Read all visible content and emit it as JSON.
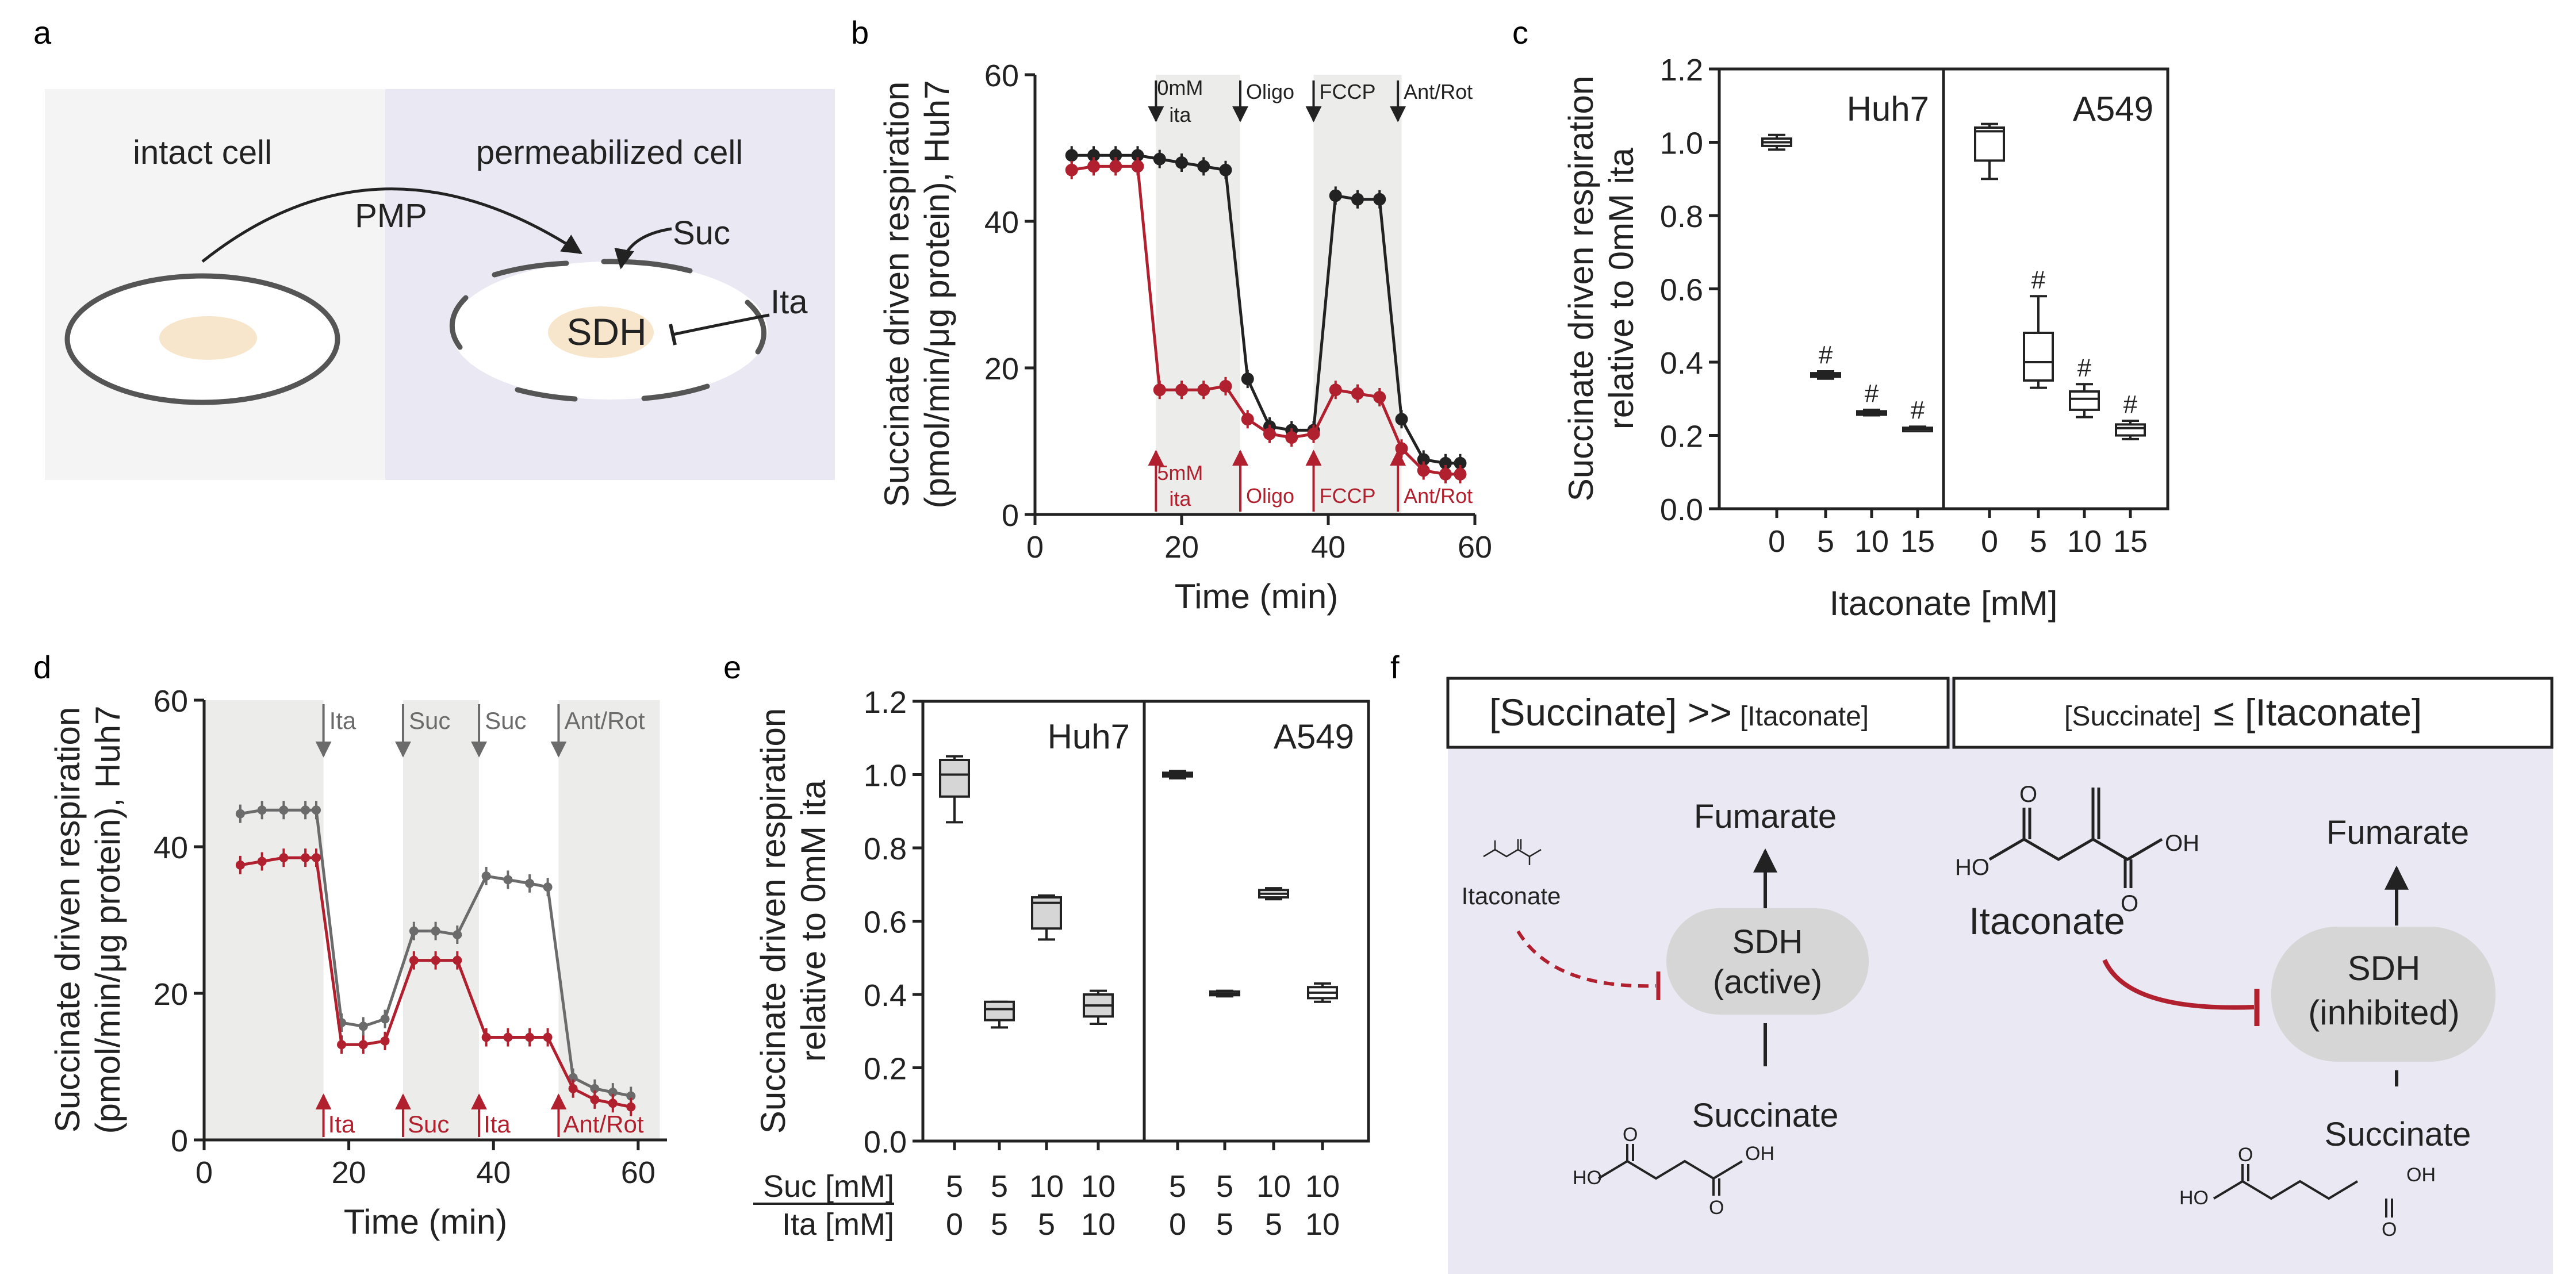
{
  "colors": {
    "black": "#222222",
    "red": "#b0202e",
    "gray": "#6b6b6b",
    "shade": "#ececea",
    "panel_a_left": "#f4f4f4",
    "panel_a_right": "#e9e8f3",
    "panel_f_bg": "#e9e8f3",
    "mito": "#f7e6cb",
    "sdh_box": "#d6d6d6"
  },
  "panel_labels": {
    "a": "a",
    "b": "b",
    "c": "c",
    "d": "d",
    "e": "e",
    "f": "f"
  },
  "panel_a": {
    "left_title": "intact cell",
    "right_title": "permeabilized cell",
    "pmp": "PMP",
    "suc": "Suc",
    "ita": "Ita",
    "sdh": "SDH"
  },
  "panel_b": {
    "ylabel_1": "Succinate driven respiration",
    "ylabel_2": "(pmol/min/μg protein), Huh7",
    "xlabel": "Time (min)",
    "yticks": [
      "0",
      "20",
      "40",
      "60"
    ],
    "xticks": [
      "0",
      "20",
      "40",
      "60"
    ],
    "top_annotations": [
      {
        "line1": "0mM",
        "line2": "ita"
      },
      {
        "line1": "Oligo",
        "line2": ""
      },
      {
        "line1": "FCCP",
        "line2": ""
      },
      {
        "line1": "Ant/Rot",
        "line2": ""
      }
    ],
    "bottom_annotations": [
      {
        "line1": "5mM",
        "line2": "ita"
      },
      {
        "line1": "Oligo",
        "line2": ""
      },
      {
        "line1": "FCCP",
        "line2": ""
      },
      {
        "line1": "Ant/Rot",
        "line2": ""
      }
    ]
  },
  "panel_c": {
    "ylabel_1": "Succinate driven respiration",
    "ylabel_2": "relative to 0mM ita",
    "xlabel": "Itaconate [mM]",
    "yticks": [
      "0.0",
      "0.2",
      "0.4",
      "0.6",
      "0.8",
      "1.0",
      "1.2"
    ],
    "xticks": [
      "0",
      "5",
      "10",
      "15"
    ],
    "cell_lines": [
      "Huh7",
      "A549"
    ],
    "sig": "#"
  },
  "panel_d": {
    "ylabel_1": "Succinate driven respiration",
    "ylabel_2": "(pmol/min/μg protein), Huh7",
    "xlabel": "Time (min)",
    "yticks": [
      "0",
      "20",
      "40",
      "60"
    ],
    "xticks": [
      "0",
      "20",
      "40",
      "60"
    ],
    "top_annotations": [
      "Ita",
      "Suc",
      "Suc",
      "Ant/Rot"
    ],
    "bottom_annotations": [
      "Ita",
      "Suc",
      "Ita",
      "Ant/Rot"
    ]
  },
  "panel_e": {
    "ylabel_1": "Succinate driven respiration",
    "ylabel_2": "relative to 0mM ita",
    "yticks": [
      "0.0",
      "0.2",
      "0.4",
      "0.6",
      "0.8",
      "1.0",
      "1.2"
    ],
    "cell_lines": [
      "Huh7",
      "A549"
    ],
    "row_labels": [
      "Suc [mM]",
      "Ita [mM]"
    ],
    "suc_values": [
      "5",
      "5",
      "10",
      "10"
    ],
    "ita_values": [
      "0",
      "5",
      "5",
      "10"
    ]
  },
  "panel_f": {
    "left_header_big": "[Succinate] >>",
    "left_header_small": "[Itaconate]",
    "right_header_small": "[Succinate]",
    "right_header_big": "≤ [Itaconate]",
    "fumarate": "Fumarate",
    "succinate": "Succinate",
    "itaconate": "Itaconate",
    "sdh": "SDH",
    "active": "(active)",
    "inhibited": "(inhibited)",
    "ho": "HO",
    "oh": "OH",
    "o": "O"
  },
  "chart_data": [
    {
      "panel": "b",
      "type": "line",
      "title": "",
      "xlabel": "Time (min)",
      "ylabel": "Succinate driven respiration (pmol/min/μg protein), Huh7",
      "xlim": [
        0,
        60
      ],
      "ylim": [
        0,
        60
      ],
      "series": [
        {
          "name": "0mM ita",
          "color": "#222222",
          "x": [
            5,
            8,
            11,
            14,
            17,
            20,
            23,
            26,
            29,
            32,
            35,
            38,
            41,
            44,
            47,
            50,
            53,
            56,
            58
          ],
          "y": [
            49,
            49,
            49,
            49,
            48.5,
            48,
            47.5,
            47,
            18.5,
            12,
            11.5,
            11.5,
            43.5,
            43,
            43,
            13,
            7.5,
            7,
            7
          ]
        },
        {
          "name": "5mM ita",
          "color": "#b0202e",
          "x": [
            5,
            8,
            11,
            14,
            17,
            20,
            23,
            26,
            29,
            32,
            35,
            38,
            41,
            44,
            47,
            50,
            53,
            56,
            58
          ],
          "y": [
            47,
            47.5,
            47.5,
            47.5,
            17,
            17,
            17,
            17.5,
            13,
            11,
            10.5,
            11,
            17,
            16.5,
            16,
            9,
            6,
            5.5,
            5.5
          ]
        }
      ],
      "shaded_intervals": [
        [
          16.5,
          28
        ],
        [
          38,
          50
        ]
      ]
    },
    {
      "panel": "c",
      "type": "box",
      "ylabel": "Succinate driven respiration relative to 0mM ita",
      "xlabel": "Itaconate [mM]",
      "ylim": [
        0,
        1.2
      ],
      "groups": [
        {
          "cell_line": "Huh7",
          "categories": [
            "0",
            "5",
            "10",
            "15"
          ],
          "boxes": [
            {
              "min": 0.98,
              "q1": 0.99,
              "median": 1.0,
              "q3": 1.01,
              "max": 1.02
            },
            {
              "min": 0.355,
              "q1": 0.36,
              "median": 0.365,
              "q3": 0.37,
              "max": 0.375
            },
            {
              "min": 0.255,
              "q1": 0.258,
              "median": 0.262,
              "q3": 0.266,
              "max": 0.27
            },
            {
              "min": 0.212,
              "q1": 0.215,
              "median": 0.218,
              "q3": 0.221,
              "max": 0.224
            }
          ],
          "significant": [
            false,
            true,
            true,
            true
          ]
        },
        {
          "cell_line": "A549",
          "categories": [
            "0",
            "5",
            "10",
            "15"
          ],
          "boxes": [
            {
              "min": 0.9,
              "q1": 0.95,
              "median": 1.03,
              "q3": 1.04,
              "max": 1.05
            },
            {
              "min": 0.33,
              "q1": 0.35,
              "median": 0.4,
              "q3": 0.48,
              "max": 0.58
            },
            {
              "min": 0.25,
              "q1": 0.27,
              "median": 0.3,
              "q3": 0.32,
              "max": 0.34
            },
            {
              "min": 0.19,
              "q1": 0.2,
              "median": 0.22,
              "q3": 0.23,
              "max": 0.24
            }
          ],
          "significant": [
            false,
            true,
            true,
            true
          ]
        }
      ]
    },
    {
      "panel": "d",
      "type": "line",
      "xlabel": "Time (min)",
      "ylabel": "Succinate driven respiration (pmol/min/μg protein), Huh7",
      "xlim": [
        0,
        62
      ],
      "ylim": [
        0,
        60
      ],
      "series": [
        {
          "name": "gray",
          "color": "#6b6b6b",
          "x": [
            5,
            8,
            11,
            14,
            15.5,
            19,
            22,
            25,
            29,
            32,
            35,
            39,
            42,
            45,
            47.5,
            51,
            54,
            56.5,
            59
          ],
          "y": [
            44.5,
            45,
            45,
            45,
            45,
            16,
            15.5,
            16.5,
            28.5,
            28.5,
            28,
            36,
            35.5,
            35,
            34.5,
            8.5,
            7,
            6.5,
            6
          ]
        },
        {
          "name": "red",
          "color": "#b0202e",
          "x": [
            5,
            8,
            11,
            14,
            15.5,
            19,
            22,
            25,
            29,
            32,
            35,
            39,
            42,
            45,
            47.5,
            51,
            54,
            56.5,
            59
          ],
          "y": [
            37.5,
            38,
            38.5,
            38.5,
            38.5,
            13,
            13,
            13.5,
            24.5,
            24.5,
            24.5,
            14,
            14,
            14,
            14,
            7,
            5.5,
            5,
            4.5
          ]
        }
      ],
      "shaded_intervals": [
        [
          0,
          16.5
        ],
        [
          27.5,
          38
        ],
        [
          49,
          63
        ]
      ]
    },
    {
      "panel": "e",
      "type": "box",
      "ylabel": "Succinate driven respiration relative to 0mM ita",
      "ylim": [
        0,
        1.2
      ],
      "groups": [
        {
          "cell_line": "Huh7",
          "conditions": [
            {
              "suc": 5,
              "ita": 0
            },
            {
              "suc": 5,
              "ita": 5
            },
            {
              "suc": 10,
              "ita": 5
            },
            {
              "suc": 10,
              "ita": 10
            }
          ],
          "boxes": [
            {
              "min": 0.87,
              "q1": 0.94,
              "median": 1.0,
              "q3": 1.04,
              "max": 1.05
            },
            {
              "min": 0.31,
              "q1": 0.33,
              "median": 0.36,
              "q3": 0.38,
              "max": 0.38
            },
            {
              "min": 0.55,
              "q1": 0.58,
              "median": 0.65,
              "q3": 0.665,
              "max": 0.67
            },
            {
              "min": 0.32,
              "q1": 0.34,
              "median": 0.37,
              "q3": 0.4,
              "max": 0.41
            }
          ]
        },
        {
          "cell_line": "A549",
          "conditions": [
            {
              "suc": 5,
              "ita": 0
            },
            {
              "suc": 5,
              "ita": 5
            },
            {
              "suc": 10,
              "ita": 5
            },
            {
              "suc": 10,
              "ita": 10
            }
          ],
          "boxes": [
            {
              "min": 0.99,
              "q1": 0.995,
              "median": 1.0,
              "q3": 1.005,
              "max": 1.01
            },
            {
              "min": 0.395,
              "q1": 0.398,
              "median": 0.402,
              "q3": 0.408,
              "max": 0.41
            },
            {
              "min": 0.66,
              "q1": 0.665,
              "median": 0.675,
              "q3": 0.685,
              "max": 0.69
            },
            {
              "min": 0.38,
              "q1": 0.39,
              "median": 0.405,
              "q3": 0.42,
              "max": 0.43
            }
          ]
        }
      ]
    }
  ]
}
